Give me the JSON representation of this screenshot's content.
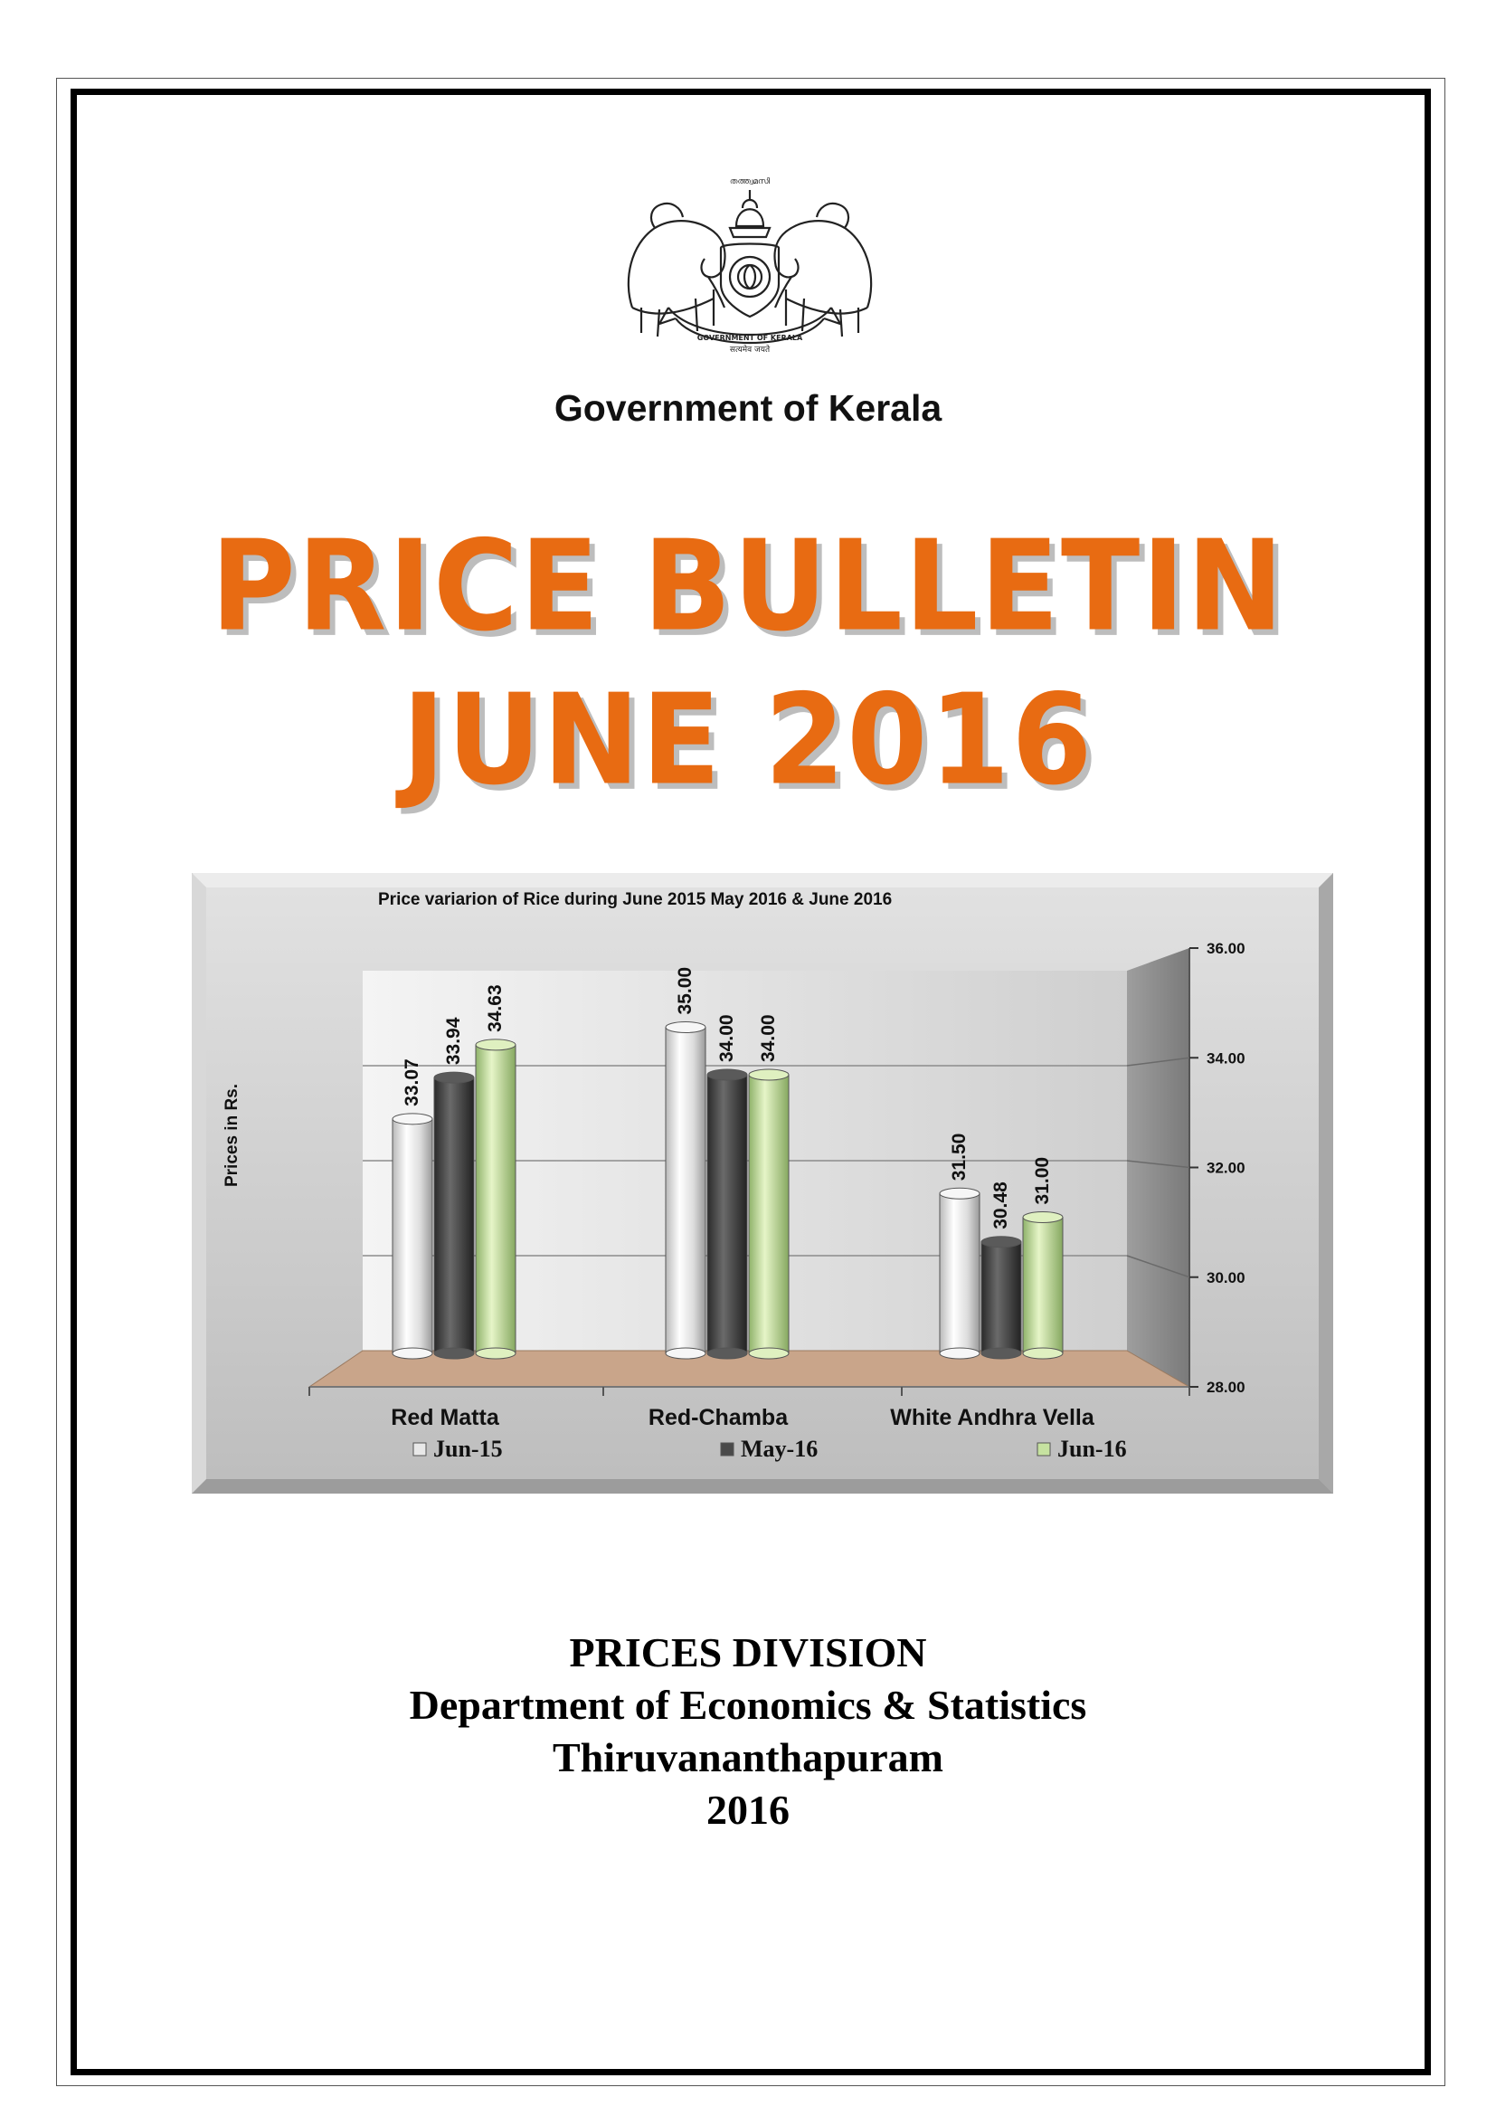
{
  "header": {
    "emblem_top_text": "തത്ത്വമസി",
    "emblem_ribbon_text": "GOVERNMENT OF KERALA",
    "emblem_motto": "सत्यमेव जयते",
    "government": "Government of Kerala"
  },
  "headline": {
    "line1": "PRICE BULLETIN",
    "line2": "JUNE 2016"
  },
  "colors": {
    "headline": "#e86b12",
    "series_jun15": "#e8e8e8",
    "series_may16": "#4a4a4a",
    "series_jun16": "#c6e2a0",
    "floor": "#c9a58a"
  },
  "chart_data": {
    "type": "bar",
    "title": "Price variarion of Rice during  June 2015 May 2016 & June 2016",
    "ylabel": "Prices in Rs.",
    "xlabel": "",
    "categories": [
      "Red Matta",
      "Red-Chamba",
      "White Andhra Vella"
    ],
    "series": [
      {
        "name": "Jun-15",
        "values": [
          33.07,
          35.0,
          31.5
        ],
        "labels": [
          "33.07",
          "35.00",
          "31.50"
        ]
      },
      {
        "name": "May-16",
        "values": [
          33.94,
          34.0,
          30.48
        ],
        "labels": [
          "33.94",
          "34.00",
          "30.48"
        ]
      },
      {
        "name": "Jun-16",
        "values": [
          34.63,
          34.0,
          31.0
        ],
        "labels": [
          "34.63",
          "34.00",
          "31.00"
        ]
      }
    ],
    "ylim": [
      28,
      36
    ],
    "yticks": [
      "28.00",
      "30.00",
      "32.00",
      "34.00",
      "36.00"
    ],
    "ytick_values": [
      28,
      30,
      32,
      34,
      36
    ],
    "grid": true,
    "legend": "bottom",
    "axis_side": "right"
  },
  "footer": {
    "division": "PRICES DIVISION",
    "department": "Department of Economics & Statistics",
    "city": "Thiruvananthapuram",
    "year": "2016"
  }
}
